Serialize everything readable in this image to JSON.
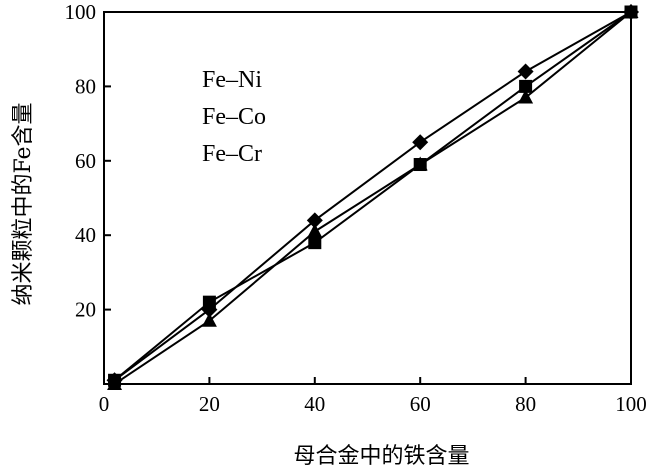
{
  "chart_data": {
    "type": "line",
    "title": "",
    "xlabel": "母合金中的铁含量",
    "ylabel": "纳米颗粒中的Fe含量",
    "xlim": [
      0,
      100
    ],
    "ylim": [
      0,
      100
    ],
    "xticks": [
      0,
      20,
      40,
      60,
      80,
      100
    ],
    "yticks": [
      20,
      40,
      60,
      80,
      100
    ],
    "grid": false,
    "legend_position": "top-left",
    "series": [
      {
        "name": "Fe–Ni",
        "marker": "diamond",
        "x": [
          2,
          20,
          40,
          60,
          80,
          100
        ],
        "y": [
          1,
          20,
          44,
          65,
          84,
          100
        ]
      },
      {
        "name": "Fe–Co",
        "marker": "square",
        "x": [
          2,
          20,
          40,
          60,
          80,
          100
        ],
        "y": [
          1,
          22,
          38,
          59,
          80,
          100
        ]
      },
      {
        "name": "Fe–Cr",
        "marker": "triangle",
        "x": [
          2,
          20,
          40,
          60,
          80,
          100
        ],
        "y": [
          0,
          17,
          41,
          59,
          77,
          100
        ]
      }
    ]
  }
}
